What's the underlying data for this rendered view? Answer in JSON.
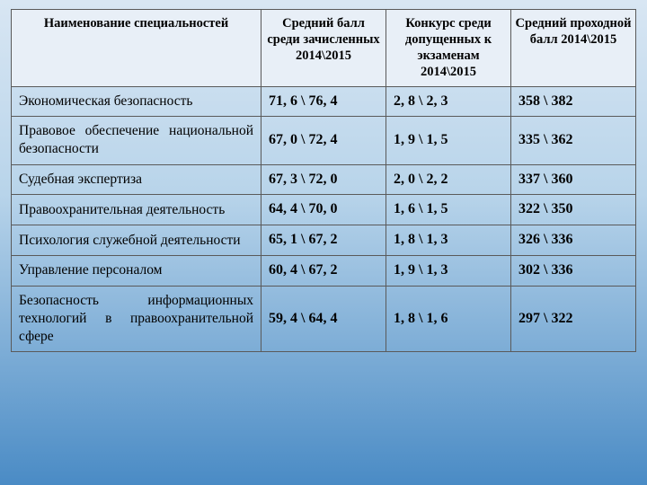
{
  "columns": {
    "col1": "Наименование специальностей",
    "col2": "Средний балл среди зачисленных 2014\\2015",
    "col3": "Конкурс среди допущенных к экзаменам 2014\\2015",
    "col4": "Средний проходной балл 2014\\2015"
  },
  "rows": [
    {
      "name": "Экономическая безопасность",
      "avg": "71, 6 \\ 76, 4",
      "comp": "2, 8 \\ 2, 3",
      "pass": "358 \\ 382"
    },
    {
      "name": "Правовое обеспечение национальной безопасности",
      "avg": "67, 0 \\ 72, 4",
      "comp": "1, 9 \\ 1, 5",
      "pass": "335 \\ 362"
    },
    {
      "name": "Судебная экспертиза",
      "avg": "67, 3 \\ 72, 0",
      "comp": "2, 0 \\ 2, 2",
      "pass": "337 \\ 360"
    },
    {
      "name": "Правоохранительная деятельность",
      "avg": "64, 4 \\ 70, 0",
      "comp": "1, 6 \\ 1, 5",
      "pass": "322 \\ 350"
    },
    {
      "name": "Психология служебной деятельности",
      "avg": "65, 1 \\ 67, 2",
      "comp": "1, 8 \\ 1, 3",
      "pass": "326 \\ 336"
    },
    {
      "name": "Управление персоналом",
      "avg": "60, 4 \\ 67, 2",
      "comp": "1, 9 \\ 1, 3",
      "pass": "302 \\ 336"
    },
    {
      "name": "Безопасность информационных технологий в правоохранительной сфере",
      "avg": "59, 4 \\ 64, 4",
      "comp": "1, 8 \\ 1, 6",
      "pass": "297 \\ 322"
    }
  ],
  "style": {
    "header_bg": "#e8eff7",
    "border_color": "#5a5a5a",
    "font_family": "Times New Roman",
    "data_font_weight": "bold",
    "background_gradient": [
      "#d8e6f3",
      "#b8d4ea",
      "#4a8bc5"
    ]
  }
}
